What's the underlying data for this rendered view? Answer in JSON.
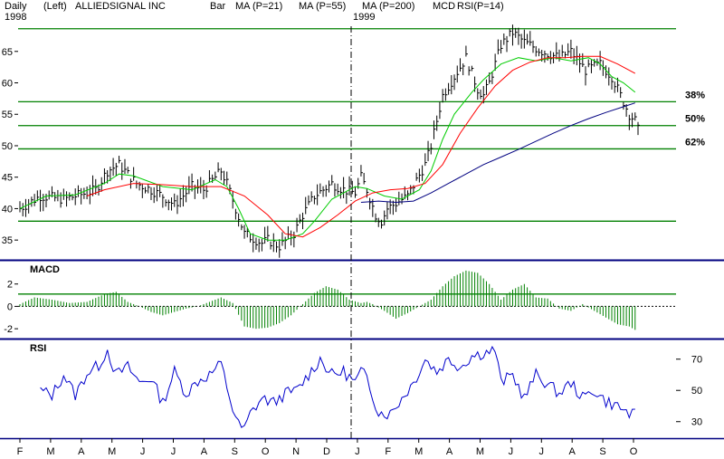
{
  "header": {
    "period": "Daily",
    "scale": "(Left)",
    "symbol": "ALLIEDSIGNAL INC",
    "style": "Bar",
    "ma21": "MA (P=21)",
    "ma55": "MA (P=55)",
    "ma200": "MA (P=200)",
    "mcd": "MCD",
    "rsi14": "RSI(P=14)",
    "year1": "1998",
    "year2": "1999"
  },
  "colors": {
    "ma21": "#00cc00",
    "ma55": "#ff0000",
    "ma200": "#000080",
    "bars": "#000000",
    "macd": "#008000",
    "rsi": "#0000cc",
    "panel_sep": "#000080",
    "levels": "#008000"
  },
  "chart_data": [
    {
      "type": "bar",
      "panel": "price",
      "ylim": [
        32,
        69
      ],
      "yticks": [
        "65",
        "60",
        "55",
        "50",
        "45",
        "40",
        "35"
      ],
      "ytick_values": [
        65,
        60,
        55,
        50,
        45,
        40,
        35
      ],
      "xticks": [
        "F",
        "M",
        "A",
        "M",
        "J",
        "J",
        "A",
        "S",
        "O",
        "N",
        "D",
        "J",
        "F",
        "M",
        "A",
        "M",
        "J",
        "J",
        "A",
        "S",
        "O"
      ],
      "x_range": [
        1,
        213
      ],
      "year_divider_x": 118,
      "fib_levels": [
        {
          "label": "38%",
          "value": 57
        },
        {
          "label": "50%",
          "value": 53.2
        },
        {
          "label": "62%",
          "value": 49.5
        }
      ],
      "extra_levels": [
        68.6,
        38
      ],
      "close": {
        "x": [
          1,
          8,
          16,
          24,
          27,
          31,
          35,
          41,
          45,
          50,
          54,
          60,
          64,
          68,
          70,
          72,
          78,
          84,
          86,
          90,
          95,
          98,
          102,
          108,
          112,
          116,
          118,
          120,
          123,
          125,
          127,
          134,
          140,
          142,
          146,
          150,
          154,
          158,
          160,
          162,
          166,
          170,
          174,
          176,
          180,
          186,
          190,
          195,
          200,
          204,
          208,
          210,
          212,
          213
        ],
        "y": [
          40,
          42,
          41.5,
          42.5,
          43,
          46,
          47,
          44,
          43.2,
          42,
          40.6,
          43.5,
          43,
          45,
          46,
          44,
          36,
          34.5,
          35,
          34,
          36,
          39,
          42,
          44,
          43,
          42.5,
          45,
          43,
          39,
          38,
          40,
          42,
          47,
          50,
          58,
          61,
          64,
          59,
          58,
          60,
          66,
          68,
          66.5,
          66,
          65,
          64,
          65,
          62,
          63,
          61,
          57,
          55,
          54,
          52.5
        ]
      },
      "series": [
        {
          "name": "MA (P=21)",
          "x": [
            1,
            10,
            20,
            30,
            35,
            40,
            50,
            60,
            68,
            72,
            76,
            80,
            86,
            92,
            98,
            102,
            108,
            116,
            120,
            126,
            132,
            138,
            142,
            146,
            150,
            156,
            160,
            166,
            172,
            178,
            184,
            190,
            196,
            200,
            204,
            208,
            212
          ],
          "y": [
            40,
            42,
            42.2,
            44,
            45.5,
            45.2,
            43.5,
            43,
            44.6,
            43.5,
            40,
            36,
            35,
            35,
            36,
            38,
            41.5,
            43.5,
            43.2,
            42,
            41.5,
            43,
            46,
            51,
            55,
            58.5,
            60.5,
            63,
            64,
            63.5,
            64,
            63.5,
            64,
            63,
            61,
            60,
            58.5
          ]
        },
        {
          "name": "MA (P=55)",
          "x": [
            24,
            30,
            40,
            50,
            60,
            70,
            78,
            86,
            92,
            98,
            104,
            110,
            116,
            122,
            128,
            134,
            140,
            146,
            152,
            158,
            164,
            170,
            176,
            182,
            188,
            194,
            200,
            206,
            212
          ],
          "y": [
            42,
            43,
            44,
            43.8,
            43.5,
            43.5,
            42,
            39,
            36,
            35.5,
            37,
            39,
            41.2,
            42.5,
            43,
            43.2,
            44,
            47,
            52,
            56,
            59.5,
            62,
            63.3,
            64,
            64,
            64.2,
            64.2,
            63,
            61.5
          ]
        },
        {
          "name": "MA (P=200)",
          "x": [
            118,
            124,
            130,
            136,
            142,
            148,
            154,
            160,
            166,
            172,
            178,
            184,
            190,
            196,
            202,
            208,
            212
          ],
          "y": [
            41,
            41.2,
            41,
            41.2,
            42.5,
            44,
            45.5,
            47,
            48.2,
            49.4,
            50.7,
            52,
            53.2,
            54.3,
            55.3,
            56.2,
            56.8
          ]
        }
      ]
    },
    {
      "type": "bar",
      "panel": "macd",
      "title": "MACD",
      "ylim": [
        -2.8,
        4
      ],
      "yticks": [
        "2",
        "0",
        "-2"
      ],
      "ytick_values": [
        2,
        0,
        -2
      ],
      "x": [
        1,
        6,
        12,
        18,
        24,
        30,
        34,
        38,
        42,
        46,
        50,
        54,
        58,
        62,
        66,
        70,
        74,
        78,
        82,
        86,
        90,
        94,
        98,
        102,
        106,
        110,
        114,
        118,
        120,
        122,
        126,
        130,
        134,
        138,
        142,
        146,
        150,
        154,
        158,
        162,
        166,
        170,
        174,
        178,
        182,
        186,
        190,
        194,
        198,
        202,
        206,
        210,
        212
      ],
      "values": [
        0.2,
        0.8,
        0.6,
        0.3,
        0.4,
        1.1,
        1.3,
        0.4,
        0,
        -0.5,
        -0.8,
        -0.5,
        -0.2,
        0,
        0.4,
        0.8,
        0.3,
        -1.8,
        -2,
        -1.9,
        -1.5,
        -0.8,
        0.2,
        1.2,
        1.8,
        1.5,
        0.6,
        0.3,
        0.4,
        0.2,
        -0.4,
        -1.1,
        -0.6,
        0,
        0.6,
        1.8,
        2.7,
        3.2,
        3,
        2,
        0.6,
        1.5,
        2,
        0.8,
        0.7,
        -0.2,
        -0.4,
        0.2,
        -0.4,
        -1,
        -1.6,
        -1.8,
        -2.1
      ]
    },
    {
      "type": "line",
      "panel": "rsi",
      "title": "RSI",
      "ylim": [
        20,
        82
      ],
      "yticks": [
        "70",
        "50",
        "30"
      ],
      "ytick_values": [
        70,
        50,
        30
      ],
      "x": [
        8,
        12,
        16,
        20,
        24,
        28,
        31,
        34,
        38,
        42,
        46,
        50,
        54,
        58,
        62,
        66,
        70,
        74,
        76,
        78,
        80,
        84,
        88,
        92,
        96,
        100,
        104,
        108,
        112,
        116,
        118,
        120,
        124,
        128,
        132,
        136,
        140,
        144,
        148,
        152,
        156,
        160,
        164,
        166,
        170,
        174,
        178,
        182,
        186,
        190,
        194,
        198,
        202,
        206,
        210,
        212
      ],
      "values": [
        50,
        47,
        60,
        47,
        61,
        66,
        76,
        60,
        65,
        55,
        58,
        42,
        62,
        48,
        56,
        60,
        67,
        38,
        28,
        25,
        35,
        45,
        42,
        48,
        50,
        60,
        70,
        60,
        62,
        55,
        62,
        58,
        36,
        35,
        45,
        55,
        70,
        62,
        70,
        65,
        72,
        74,
        76,
        55,
        60,
        45,
        60,
        54,
        48,
        55,
        45,
        50,
        43,
        40,
        35,
        34
      ]
    }
  ]
}
